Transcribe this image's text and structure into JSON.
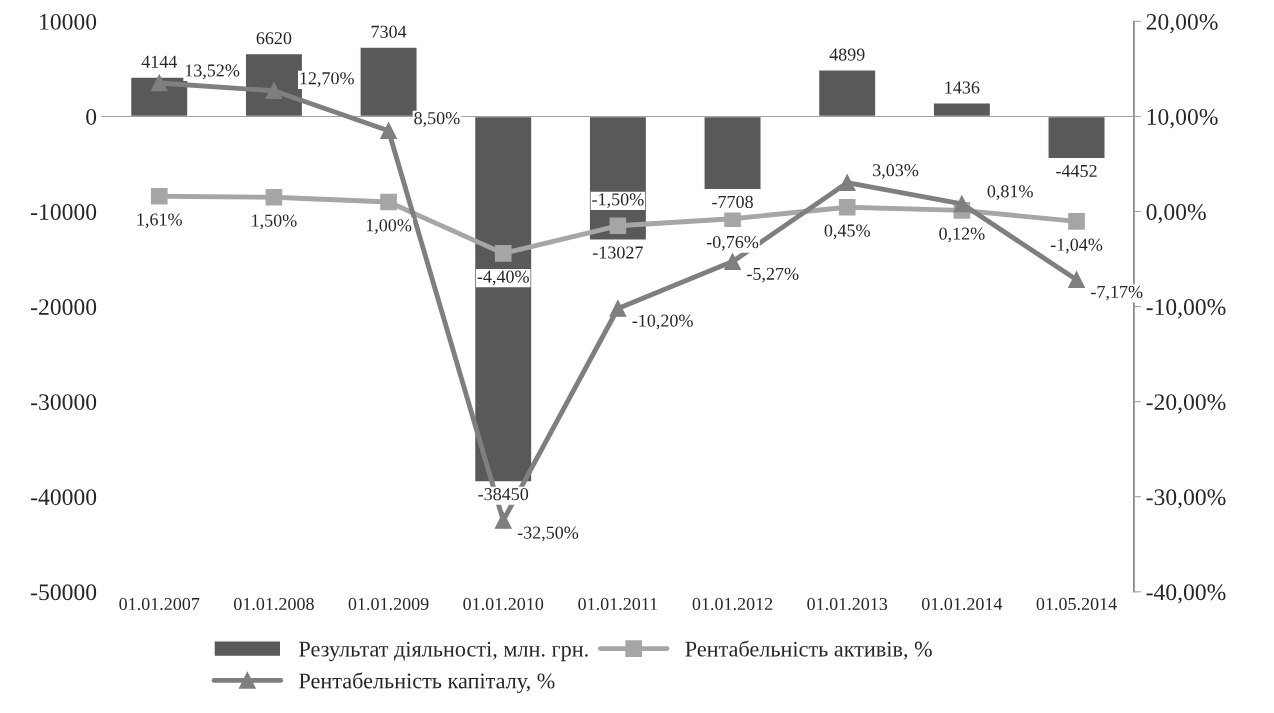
{
  "chart_data": {
    "type": "bar",
    "categories": [
      "01.01.2007",
      "01.01.2008",
      "01.01.2009",
      "01.01.2010",
      "01.01.2011",
      "01.01.2012",
      "01.01.2013",
      "01.01.2014",
      "01.05.2014"
    ],
    "series": [
      {
        "name": "Результат діяльності, млн. грн.",
        "color": "#595959",
        "values": [
          4144,
          6620,
          7304,
          -38450,
          -13027,
          -7708,
          4899,
          1436,
          -4452
        ],
        "value_labels": [
          "4144",
          "6620",
          "7304",
          "-38450",
          "-13027",
          "-7708",
          "4899",
          "1436",
          "-4452"
        ]
      },
      {
        "name": "Рентабельність активів, %",
        "type": "line",
        "axis": "y2",
        "marker": "square",
        "color": "#a6a6a6",
        "values": [
          1.61,
          1.5,
          1.0,
          -4.4,
          -1.5,
          -0.76,
          0.45,
          0.12,
          -1.04
        ],
        "value_labels": [
          "1,61%",
          "1,50%",
          "1,00%",
          "-4,40%",
          "-1,50%",
          "-0,76%",
          "0,45%",
          "0,12%",
          "-1,04%"
        ]
      },
      {
        "name": "Рентабельність капіталу, %",
        "type": "line",
        "axis": "y2",
        "marker": "triangle",
        "color": "#7f7f7f",
        "values": [
          13.52,
          12.7,
          8.5,
          -32.5,
          -10.2,
          -5.27,
          3.03,
          0.81,
          -7.17
        ],
        "value_labels": [
          "13,52%",
          "12,70%",
          "8,50%",
          "-32,50%",
          "-10,20%",
          "-5,27%",
          "3,03%",
          "0,81%",
          "-7,17%"
        ]
      }
    ],
    "ylim": [
      -50000,
      10000
    ],
    "yticks": [
      -50000,
      -40000,
      -30000,
      -20000,
      -10000,
      0,
      10000
    ],
    "y2lim": [
      -40,
      20
    ],
    "y2ticks": [
      {
        "value": -40,
        "label": "-40,00%"
      },
      {
        "value": -30,
        "label": "-30,00%"
      },
      {
        "value": -20,
        "label": "-20,00%"
      },
      {
        "value": -10,
        "label": "-10,00%"
      },
      {
        "value": 0,
        "label": "0,00%"
      },
      {
        "value": 10,
        "label": "10,00%"
      },
      {
        "value": 20,
        "label": "20,00%"
      }
    ],
    "legend": "bottom",
    "line_style": "solid"
  }
}
